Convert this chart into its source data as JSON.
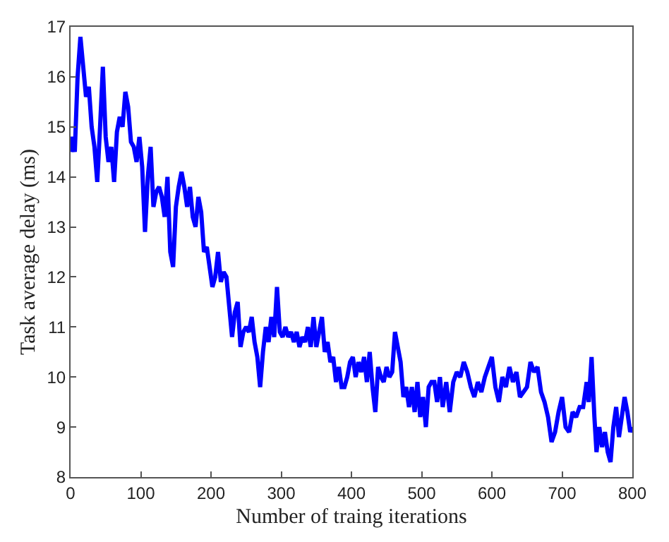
{
  "chart_data": {
    "type": "line",
    "xlabel": "Number of traing iterations",
    "ylabel": "Task average delay (ms)",
    "x": [
      0,
      3,
      6,
      10,
      14,
      18,
      22,
      26,
      30,
      34,
      38,
      42,
      46,
      50,
      54,
      58,
      62,
      66,
      70,
      74,
      78,
      82,
      86,
      90,
      94,
      98,
      102,
      106,
      110,
      114,
      118,
      122,
      126,
      130,
      134,
      138,
      142,
      146,
      150,
      154,
      158,
      162,
      166,
      170,
      174,
      178,
      182,
      186,
      190,
      194,
      198,
      202,
      206,
      210,
      214,
      218,
      222,
      226,
      230,
      234,
      238,
      242,
      246,
      250,
      254,
      258,
      262,
      266,
      270,
      274,
      278,
      282,
      286,
      290,
      294,
      298,
      302,
      306,
      310,
      314,
      318,
      322,
      326,
      330,
      334,
      338,
      342,
      346,
      350,
      354,
      358,
      362,
      366,
      370,
      374,
      378,
      382,
      386,
      390,
      394,
      398,
      402,
      406,
      410,
      414,
      418,
      422,
      426,
      430,
      434,
      438,
      442,
      446,
      450,
      454,
      458,
      462,
      466,
      470,
      474,
      478,
      482,
      486,
      490,
      494,
      498,
      502,
      506,
      510,
      514,
      518,
      522,
      526,
      530,
      535,
      540,
      545,
      550,
      555,
      560,
      565,
      570,
      575,
      580,
      585,
      590,
      595,
      600,
      605,
      610,
      615,
      620,
      625,
      630,
      635,
      640,
      645,
      650,
      655,
      660,
      665,
      670,
      675,
      680,
      685,
      690,
      695,
      700,
      705,
      710,
      715,
      720,
      725,
      730,
      735,
      738,
      742,
      746,
      749,
      753,
      757,
      761,
      765,
      769,
      773,
      777,
      781,
      785,
      789,
      793,
      797,
      800
    ],
    "series": [
      {
        "color": "#0000ff",
        "values": [
          14.5,
          14.8,
          14.5,
          16.0,
          16.8,
          16.2,
          15.6,
          15.8,
          15.0,
          14.6,
          13.9,
          15.0,
          16.2,
          14.8,
          14.3,
          14.6,
          13.9,
          14.9,
          15.2,
          15.0,
          15.7,
          15.4,
          14.7,
          14.6,
          14.3,
          14.8,
          14.2,
          12.9,
          14.0,
          14.6,
          13.4,
          13.7,
          13.8,
          13.6,
          13.2,
          14.0,
          12.5,
          12.2,
          13.4,
          13.8,
          14.1,
          13.8,
          13.4,
          13.8,
          13.2,
          13.0,
          13.6,
          13.3,
          12.5,
          12.6,
          12.2,
          11.8,
          12.0,
          12.5,
          11.9,
          12.1,
          12.0,
          11.4,
          10.8,
          11.3,
          11.5,
          10.6,
          10.9,
          11.0,
          10.9,
          11.2,
          10.7,
          10.4,
          9.8,
          10.5,
          11.0,
          10.7,
          11.2,
          10.8,
          11.8,
          10.9,
          10.8,
          11.0,
          10.8,
          10.9,
          10.7,
          10.9,
          10.6,
          10.8,
          10.7,
          11.0,
          10.6,
          11.2,
          10.6,
          10.9,
          11.2,
          10.5,
          10.7,
          10.3,
          10.4,
          9.9,
          10.2,
          9.8,
          9.8,
          10.0,
          10.3,
          10.4,
          10.0,
          10.3,
          10.1,
          10.4,
          9.9,
          10.5,
          9.8,
          9.3,
          10.2,
          10.0,
          9.9,
          10.2,
          10.0,
          10.1,
          10.9,
          10.6,
          10.3,
          9.6,
          9.8,
          9.4,
          9.8,
          9.3,
          9.9,
          9.2,
          9.6,
          9.0,
          9.8,
          9.9,
          9.9,
          9.5,
          10.0,
          9.4,
          9.9,
          9.3,
          9.9,
          10.1,
          10.0,
          10.3,
          10.1,
          9.8,
          9.6,
          9.9,
          9.7,
          10.0,
          10.2,
          10.4,
          9.8,
          9.5,
          10.0,
          9.8,
          10.2,
          9.9,
          10.1,
          9.6,
          9.7,
          9.8,
          10.3,
          10.1,
          10.2,
          9.7,
          9.5,
          9.2,
          8.7,
          8.9,
          9.3,
          9.6,
          9.0,
          8.9,
          9.3,
          9.2,
          9.4,
          9.4,
          9.9,
          9.5,
          10.4,
          9.2,
          8.5,
          9.0,
          8.6,
          8.9,
          8.5,
          8.3,
          9.0,
          9.4,
          8.8,
          9.2,
          9.6,
          9.3,
          8.9,
          9.0
        ]
      }
    ],
    "xlim": [
      0,
      800
    ],
    "xticks": [
      0,
      100,
      200,
      300,
      400,
      500,
      600,
      700,
      800
    ],
    "ylim": [
      8,
      17
    ],
    "yticks": [
      8,
      9,
      10,
      11,
      12,
      13,
      14,
      15,
      16,
      17
    ],
    "marker": "none",
    "line_style": "solid"
  }
}
